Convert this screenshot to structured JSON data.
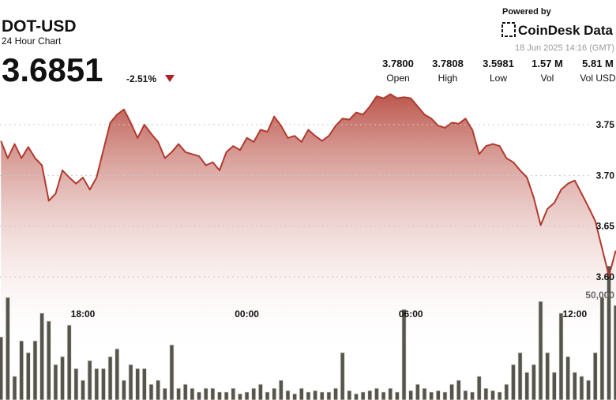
{
  "header": {
    "title": "DOT-USD",
    "subtitle": "24 Hour Chart",
    "price": "3.6851",
    "change": "-2.51%",
    "powered_by": "Powered by",
    "brand": "CoinDesk Data",
    "timestamp": "18 Jun 2025 14:16 (GMT)",
    "stats": [
      {
        "value": "3.7800",
        "label": "Open"
      },
      {
        "value": "3.7808",
        "label": "High"
      },
      {
        "value": "3.5981",
        "label": "Low"
      },
      {
        "value": "1.57 M",
        "label": "Vol"
      },
      {
        "value": "5.81 M",
        "label": "Vol USD"
      }
    ]
  },
  "chart_data": {
    "type": "line",
    "categories": [
      null,
      null,
      null,
      null,
      null,
      null,
      null,
      null,
      null,
      null,
      null,
      null,
      "18:00",
      null,
      null,
      null,
      null,
      null,
      null,
      null,
      null,
      null,
      null,
      null,
      null,
      null,
      null,
      null,
      null,
      null,
      null,
      null,
      null,
      null,
      null,
      null,
      "00:00",
      null,
      null,
      null,
      null,
      null,
      null,
      null,
      null,
      null,
      null,
      null,
      null,
      null,
      null,
      null,
      null,
      null,
      null,
      null,
      null,
      null,
      null,
      null,
      "06:00",
      null,
      null,
      null,
      null,
      null,
      null,
      null,
      null,
      null,
      null,
      null,
      null,
      null,
      null,
      null,
      null,
      null,
      null,
      null,
      null,
      null,
      null,
      null,
      "12:00",
      null,
      null,
      null,
      null,
      null,
      null
    ],
    "series": [
      {
        "type": "area",
        "color": "#b03a2e",
        "values": [
          3.734,
          3.717,
          3.731,
          3.717,
          3.728,
          3.717,
          3.71,
          3.675,
          3.682,
          3.705,
          3.698,
          3.692,
          3.698,
          3.686,
          3.698,
          3.725,
          3.752,
          3.76,
          3.765,
          3.752,
          3.737,
          3.75,
          3.741,
          3.733,
          3.717,
          3.723,
          3.731,
          3.723,
          3.721,
          3.719,
          3.71,
          3.713,
          3.705,
          3.723,
          3.729,
          3.725,
          3.737,
          3.733,
          3.745,
          3.743,
          3.758,
          3.749,
          3.737,
          3.739,
          3.733,
          3.745,
          3.739,
          3.734,
          3.739,
          3.749,
          3.756,
          3.755,
          3.762,
          3.76,
          3.768,
          3.778,
          3.776,
          3.78,
          3.776,
          3.777,
          3.776,
          3.768,
          3.76,
          3.756,
          3.749,
          3.747,
          3.752,
          3.751,
          3.756,
          3.745,
          3.721,
          3.729,
          3.731,
          3.729,
          3.717,
          3.713,
          3.705,
          3.698,
          3.678,
          3.651,
          3.667,
          3.673,
          3.686,
          3.692,
          3.695,
          3.682,
          3.669,
          3.655,
          3.628,
          3.601,
          3.626
        ]
      },
      {
        "type": "bar",
        "axis": "y2",
        "color": "#55554d",
        "values": [
          30100,
          48900,
          11300,
          28200,
          22600,
          28200,
          41400,
          37600,
          16900,
          20700,
          35700,
          15000,
          9400,
          18800,
          15000,
          15000,
          20700,
          24400,
          9400,
          16900,
          15000,
          15000,
          7500,
          9400,
          5600,
          26300,
          5600,
          7500,
          5600,
          3800,
          5600,
          5600,
          3800,
          3800,
          5600,
          3000,
          3800,
          5600,
          7500,
          3800,
          5600,
          9400,
          4500,
          3000,
          5600,
          3800,
          4500,
          3800,
          3800,
          5600,
          22600,
          4500,
          3000,
          3800,
          4500,
          5600,
          3800,
          5600,
          3800,
          43200,
          4500,
          7500,
          5600,
          3800,
          4500,
          3800,
          7500,
          9400,
          4500,
          3800,
          11300,
          5600,
          4500,
          3800,
          7500,
          16900,
          22600,
          13200,
          16900,
          47000,
          22600,
          13200,
          41400,
          20700,
          13200,
          11300,
          9400,
          22600,
          48900,
          63900,
          45100
        ]
      }
    ],
    "ylim": [
      3.55,
      3.8
    ],
    "yticks": [
      {
        "value": 3.6,
        "label": "3.60"
      },
      3.65,
      {
        "value": 3.7,
        "label": "3.70"
      },
      3.75
    ],
    "y2lim": [
      0,
      130000
    ],
    "y2ticks": [
      {
        "value": 50000,
        "label": "50,000"
      }
    ],
    "grid": true
  }
}
